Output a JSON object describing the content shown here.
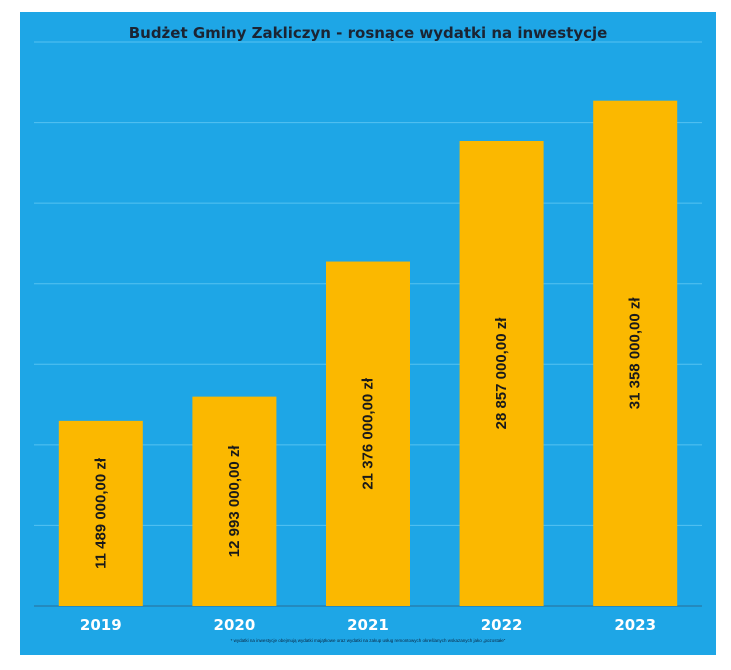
{
  "chart_data": {
    "type": "bar",
    "title": "Budżet Gminy Zakliczyn - rosnące wydatki na inwestycje",
    "xlabel": "",
    "ylabel": "",
    "categories": [
      "2019",
      "2020",
      "2021",
      "2022",
      "2023"
    ],
    "values": [
      11489000,
      12993000,
      21376000,
      28857000,
      31358000
    ],
    "data_labels": [
      "11 489 000,00 zł",
      "12 993 000,00 zł",
      "21 376 000,00 zł",
      "28 857 000,00 zł",
      "31 358 000,00 zł"
    ],
    "ylim": [
      0,
      35000000
    ],
    "grid": true,
    "legend": "none",
    "footnote": "* wydatki na inwestycje obejmują wydatki majątkowe oraz wydatki na zakup usług remontowych określanych wskazanych jako „pozostałe”",
    "colors": {
      "panel": "#1ea6e6",
      "bar": "#fbb800",
      "category_label": "#ffffff",
      "data_label": "#1a1a1a",
      "gridline": "#55c2f1"
    }
  }
}
